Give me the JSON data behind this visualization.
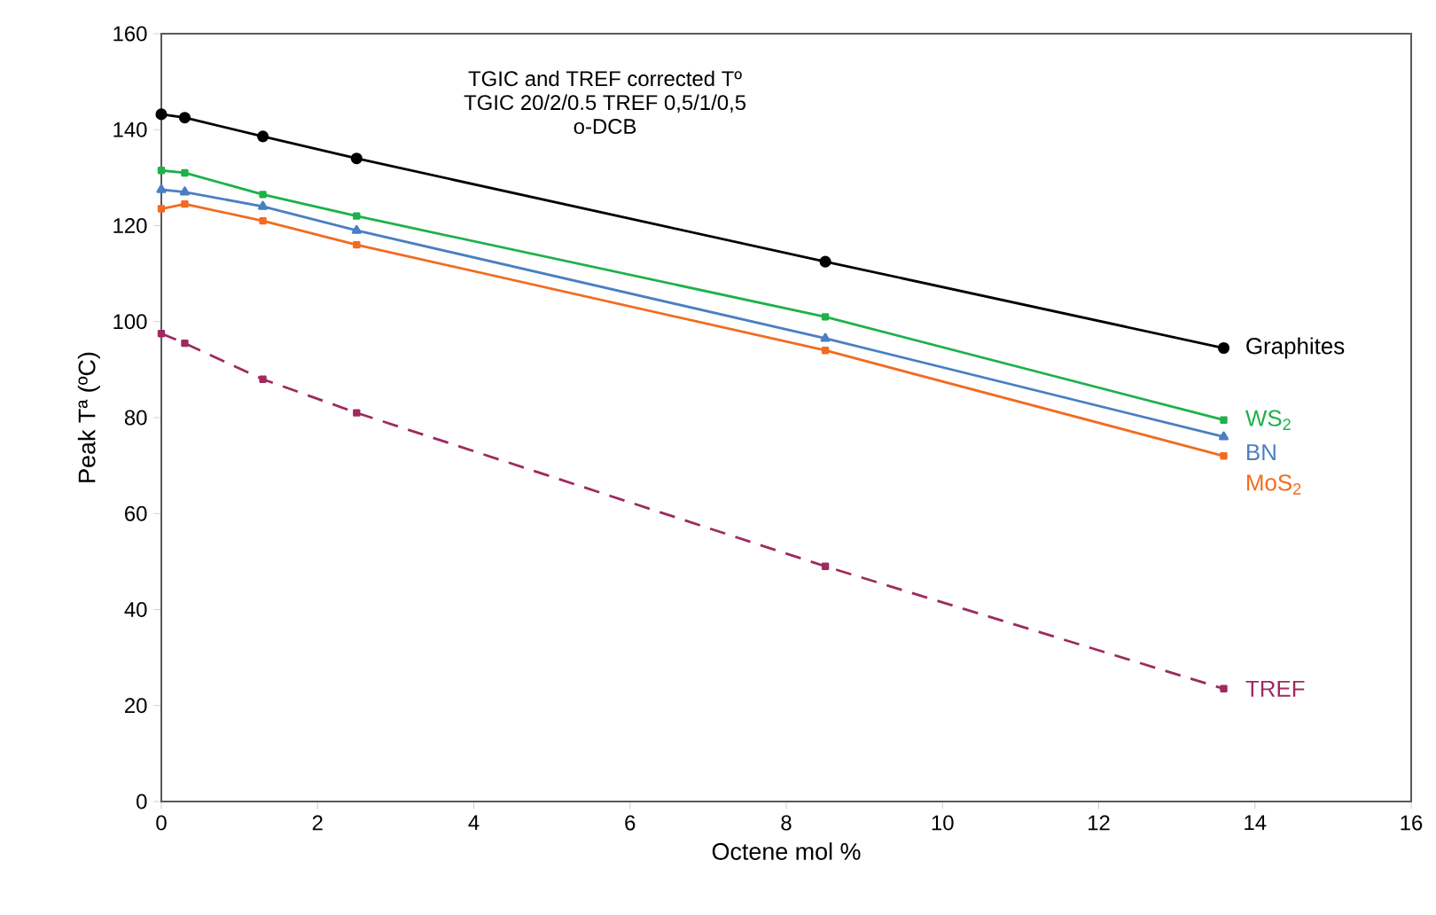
{
  "chart_data": {
    "type": "line",
    "annotations": [
      "TGIC  and  TREF  corrected  Tº",
      "TGIC 20/2/0.5  TREF 0,5/1/0,5",
      "o-DCB"
    ],
    "xlabel": "Octene mol %",
    "ylabel": "Peak Tª (ºC)",
    "xlim": [
      0,
      16
    ],
    "xticks": [
      0,
      2,
      4,
      6,
      8,
      10,
      12,
      14,
      16
    ],
    "ylim": [
      0,
      160
    ],
    "yticks": [
      0,
      20,
      40,
      60,
      80,
      100,
      120,
      140,
      160
    ],
    "grid": false,
    "legend": false,
    "x": [
      0,
      0.3,
      1.3,
      2.5,
      8.5,
      13.6
    ],
    "series": [
      {
        "name": "Graphites",
        "color": "#000000",
        "marker": "circle",
        "line_style": "solid",
        "values": [
          143.2,
          142.5,
          138.6,
          134,
          112.5,
          94.5
        ]
      },
      {
        "name": "WS$_{2}$",
        "color": "#1db14b",
        "marker": "square",
        "line_style": "solid",
        "values": [
          131.5,
          131,
          126.5,
          122,
          101,
          79.5
        ]
      },
      {
        "name": "BN",
        "color": "#4a7fc1",
        "marker": "triangle",
        "line_style": "solid",
        "values": [
          127.5,
          127,
          124,
          119,
          96.5,
          76
        ]
      },
      {
        "name": "MoS$_{2}$",
        "color": "#f26b21",
        "marker": "square",
        "line_style": "solid",
        "values": [
          123.5,
          124.5,
          121,
          116,
          94,
          72
        ]
      },
      {
        "name": "TREF",
        "color": "#9e2a5e",
        "marker": "square",
        "line_style": "dashed",
        "values": [
          97.5,
          95.5,
          88,
          81,
          49,
          23.5
        ]
      }
    ]
  }
}
